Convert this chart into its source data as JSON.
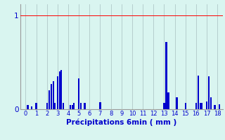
{
  "title": "",
  "xlabel": "Précipitations 6min ( mm )",
  "ylabel": "",
  "background_color": "#d9f5f0",
  "bar_color": "#0000cc",
  "xlim": [
    -0.5,
    18.5
  ],
  "ylim": [
    0,
    1.12
  ],
  "yticks": [
    0,
    1
  ],
  "ytick_labels": [
    "0",
    "1"
  ],
  "xticks": [
    0,
    1,
    2,
    3,
    4,
    5,
    6,
    7,
    8,
    9,
    10,
    11,
    12,
    13,
    14,
    15,
    16,
    17,
    18
  ],
  "grid_color": "#b0c8c8",
  "bar_width": 0.15,
  "values": [
    [
      0.2,
      0.045
    ],
    [
      0.55,
      0.03
    ],
    [
      1.0,
      0.065
    ],
    [
      2.0,
      0.065
    ],
    [
      2.2,
      0.2
    ],
    [
      2.4,
      0.27
    ],
    [
      2.6,
      0.3
    ],
    [
      2.75,
      0.065
    ],
    [
      3.0,
      0.35
    ],
    [
      3.2,
      0.4
    ],
    [
      3.35,
      0.42
    ],
    [
      3.55,
      0.065
    ],
    [
      4.2,
      0.045
    ],
    [
      4.4,
      0.045
    ],
    [
      4.55,
      0.065
    ],
    [
      5.0,
      0.33
    ],
    [
      5.2,
      0.065
    ],
    [
      5.55,
      0.065
    ],
    [
      7.0,
      0.075
    ],
    [
      13.0,
      0.065
    ],
    [
      13.2,
      0.72
    ],
    [
      13.4,
      0.18
    ],
    [
      14.2,
      0.13
    ],
    [
      15.0,
      0.065
    ],
    [
      16.0,
      0.065
    ],
    [
      16.2,
      0.36
    ],
    [
      16.4,
      0.065
    ],
    [
      16.55,
      0.065
    ],
    [
      17.0,
      0.08
    ],
    [
      17.2,
      0.35
    ],
    [
      17.4,
      0.13
    ],
    [
      17.75,
      0.045
    ],
    [
      18.2,
      0.055
    ]
  ]
}
